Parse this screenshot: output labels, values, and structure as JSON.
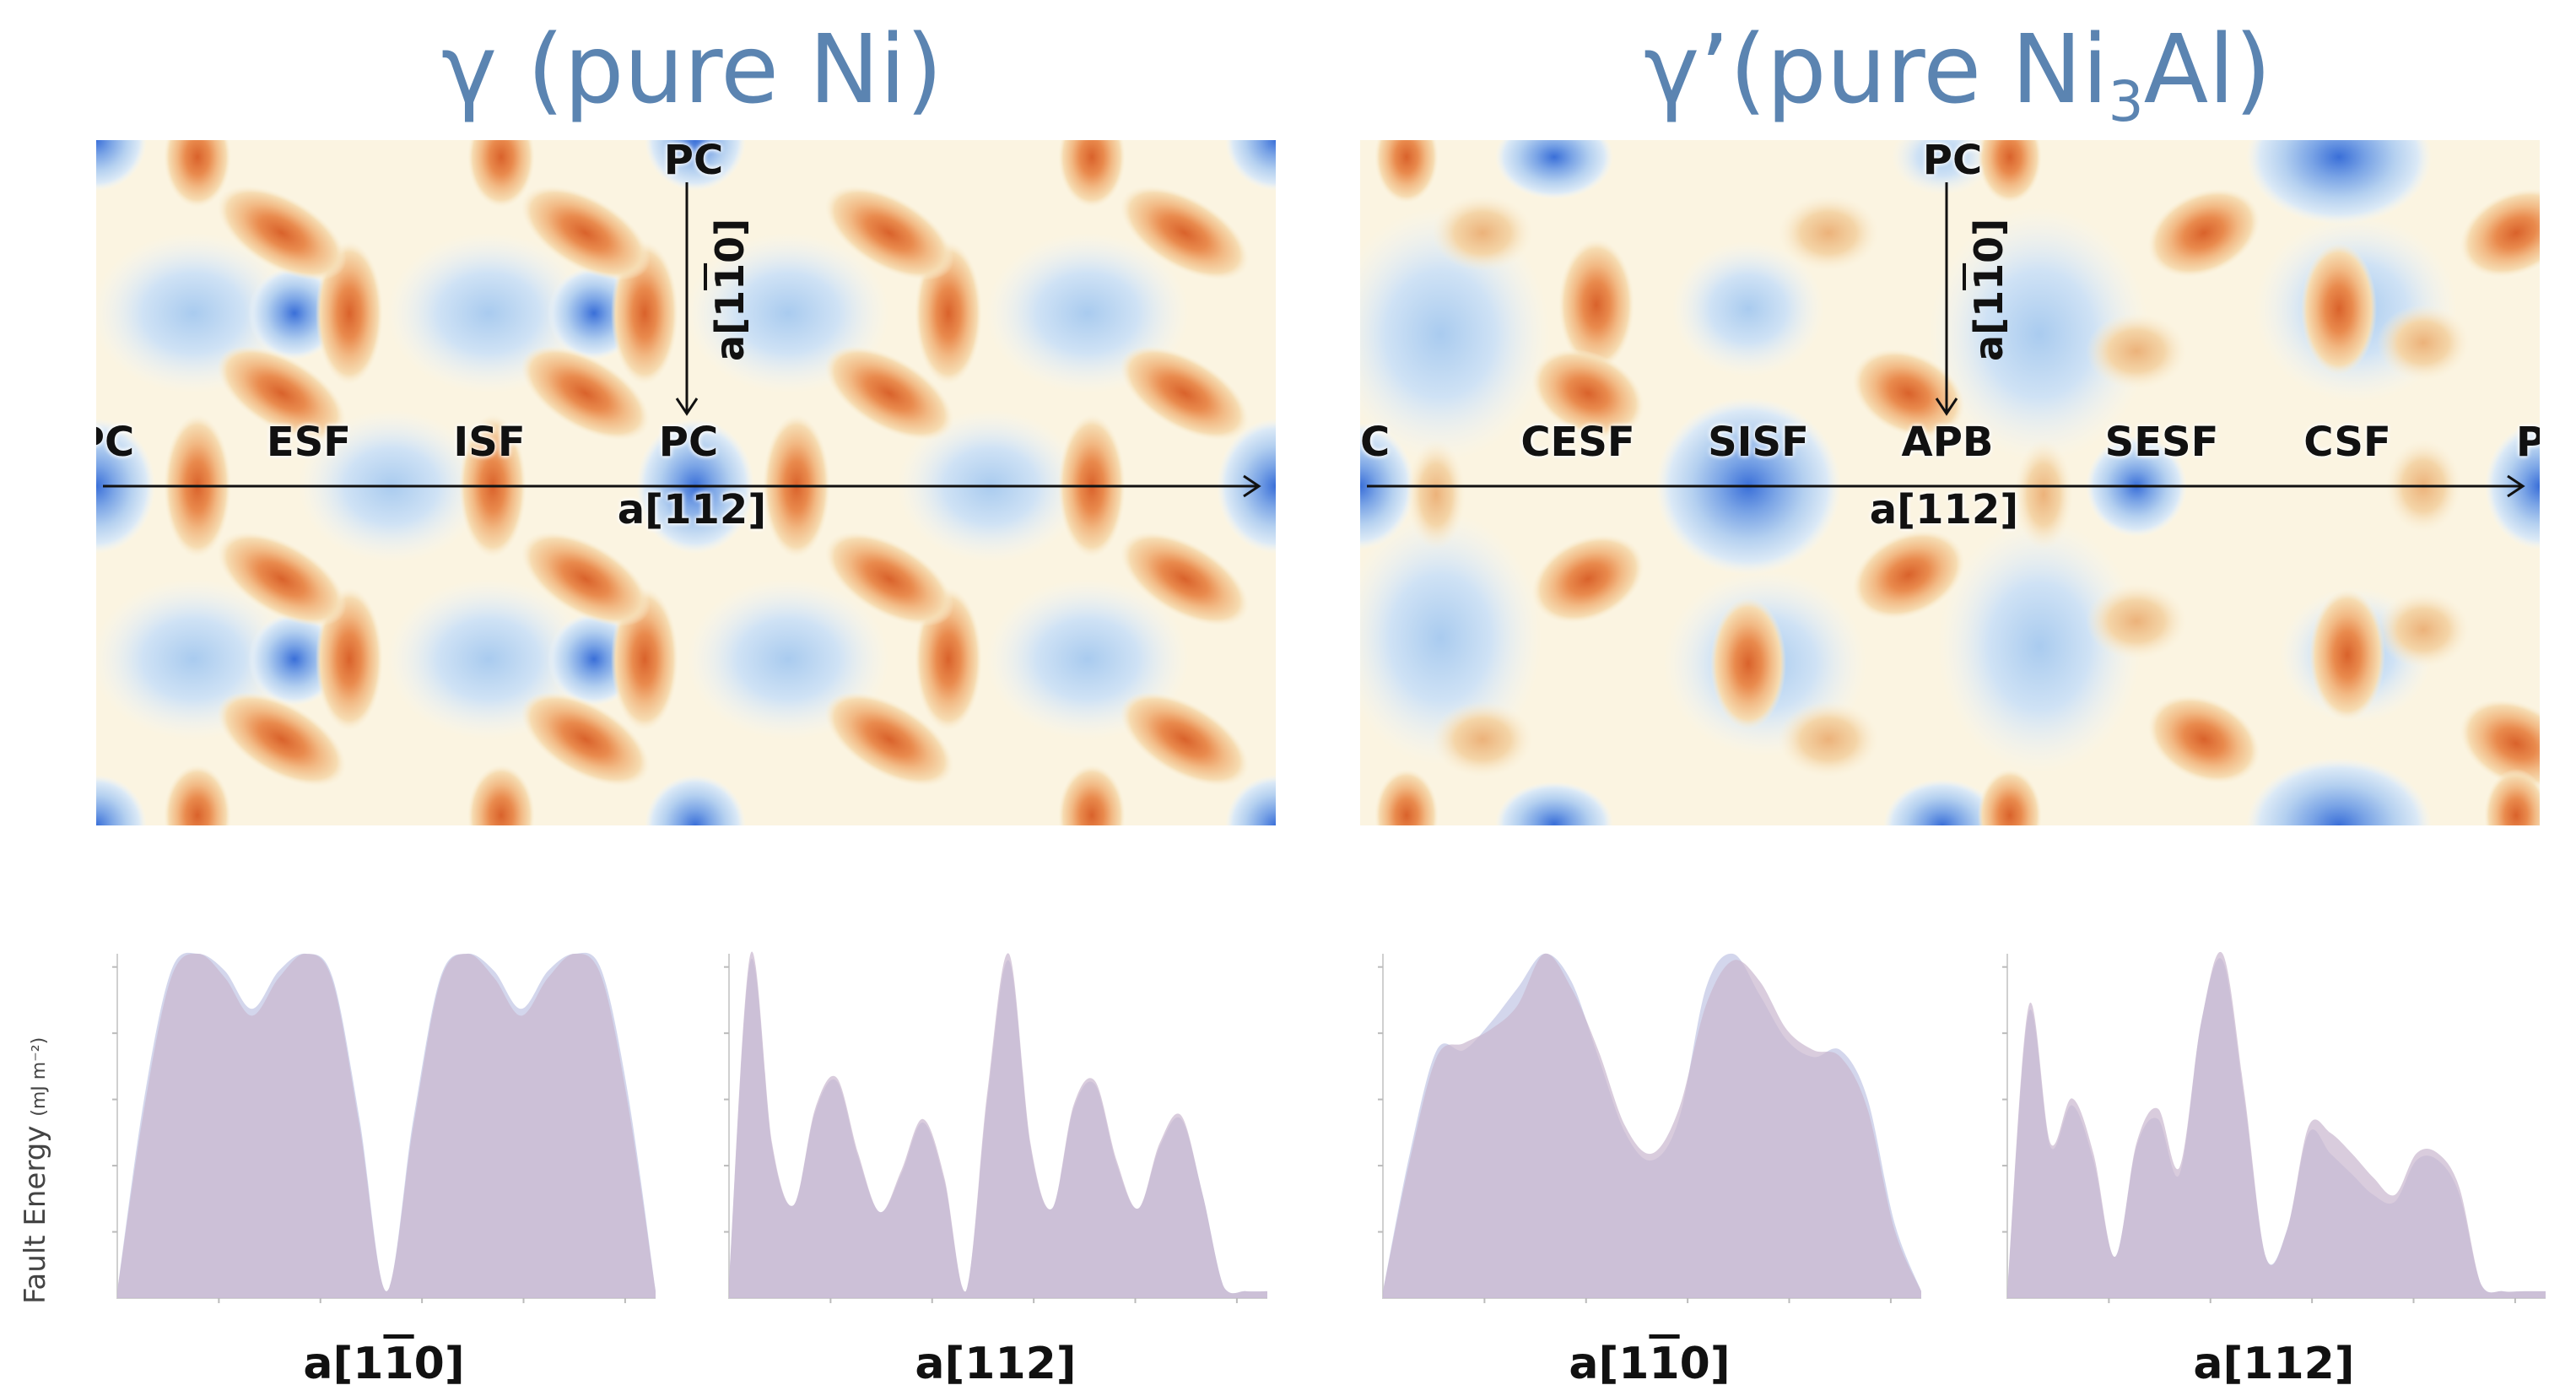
{
  "titles": {
    "left_prefix": "γ (pure Ni)",
    "right_prefix": "γ’(pure Ni",
    "right_sub": "3",
    "right_suffix": "Al)"
  },
  "maps": {
    "left": {
      "h_points": [
        "PC",
        "ESF",
        "ISF",
        "PC"
      ],
      "v_top": "PC",
      "h_axis": "a[112]",
      "v_axis_pre": "a[1",
      "v_axis_bar": "1",
      "v_axis_post": "0]"
    },
    "right": {
      "h_points": [
        "PC",
        "CESF",
        "SISF",
        "APB",
        "SESF",
        "CSF",
        "PC"
      ],
      "v_top": "PC",
      "h_axis": "a[112]",
      "v_axis_pre": "a[1",
      "v_axis_bar": "1",
      "v_axis_post": "0]"
    }
  },
  "profiles": {
    "ylabel": "Fault Energy",
    "yunit": "(mJ m⁻²)",
    "xlabels": [
      {
        "pre": "a[1",
        "bar": "1",
        "post": "0]"
      },
      {
        "pre": "a[112]",
        "bar": "",
        "post": ""
      },
      {
        "pre": "a[1",
        "bar": "1",
        "post": "0]"
      },
      {
        "pre": "a[112]",
        "bar": "",
        "post": ""
      }
    ]
  },
  "colors": {
    "fill_primary": "#c9b7cf",
    "fill_secondary": "#c4c8e6",
    "title": "#5b84b1",
    "map_high": "#d9622b",
    "map_low": "#3a6fd8"
  },
  "chart_data": [
    {
      "type": "area",
      "ylabel": "Fault Energy (mJ m⁻²)",
      "xlabel": "a[11̄0]",
      "x": [
        0,
        0.05,
        0.1,
        0.15,
        0.2,
        0.25,
        0.3,
        0.35,
        0.4,
        0.45,
        0.5,
        0.55,
        0.6,
        0.65,
        0.7,
        0.75,
        0.8,
        0.85,
        0.9,
        0.95,
        1.0
      ],
      "series": [
        {
          "values": [
            0.02,
            0.55,
            0.93,
            1.0,
            0.93,
            0.82,
            0.93,
            1.0,
            0.92,
            0.5,
            0.02,
            0.5,
            0.92,
            1.0,
            0.93,
            0.82,
            0.93,
            1.0,
            0.93,
            0.55,
            0.02
          ]
        },
        {
          "values": [
            0.02,
            0.58,
            0.95,
            1.0,
            0.95,
            0.84,
            0.95,
            1.0,
            0.93,
            0.52,
            0.02,
            0.52,
            0.93,
            1.0,
            0.95,
            0.84,
            0.95,
            1.0,
            0.95,
            0.58,
            0.02
          ]
        }
      ]
    },
    {
      "type": "area",
      "xlabel": "a[112]",
      "x": [
        0,
        0.04,
        0.08,
        0.12,
        0.16,
        0.2,
        0.24,
        0.28,
        0.32,
        0.36,
        0.4,
        0.44,
        0.48,
        0.52,
        0.56,
        0.6,
        0.64,
        0.68,
        0.72,
        0.76,
        0.8,
        0.84,
        0.88,
        0.92,
        0.96,
        1.0
      ],
      "series": [
        {
          "values": [
            0.05,
            1.0,
            0.45,
            0.27,
            0.55,
            0.64,
            0.42,
            0.25,
            0.37,
            0.52,
            0.35,
            0.02,
            0.6,
            1.0,
            0.45,
            0.26,
            0.56,
            0.63,
            0.4,
            0.26,
            0.45,
            0.53,
            0.3,
            0.03,
            0.02,
            0.02
          ]
        },
        {
          "values": [
            0.05,
            0.98,
            0.44,
            0.27,
            0.54,
            0.63,
            0.41,
            0.25,
            0.36,
            0.51,
            0.34,
            0.02,
            0.58,
            0.98,
            0.44,
            0.26,
            0.55,
            0.62,
            0.39,
            0.26,
            0.44,
            0.52,
            0.3,
            0.03,
            0.02,
            0.02
          ]
        }
      ]
    },
    {
      "type": "area",
      "xlabel": "a[11̄0]",
      "x": [
        0,
        0.05,
        0.1,
        0.15,
        0.2,
        0.25,
        0.3,
        0.35,
        0.4,
        0.45,
        0.5,
        0.55,
        0.6,
        0.65,
        0.7,
        0.75,
        0.8,
        0.85,
        0.9,
        0.95,
        1.0
      ],
      "series": [
        {
          "values": [
            0.02,
            0.4,
            0.7,
            0.74,
            0.78,
            0.85,
            1.0,
            0.9,
            0.72,
            0.5,
            0.42,
            0.55,
            0.85,
            0.98,
            0.92,
            0.78,
            0.72,
            0.7,
            0.55,
            0.2,
            0.02
          ]
        },
        {
          "values": [
            0.02,
            0.42,
            0.72,
            0.72,
            0.8,
            0.9,
            1.0,
            0.92,
            0.7,
            0.48,
            0.4,
            0.52,
            0.9,
            1.0,
            0.88,
            0.75,
            0.7,
            0.72,
            0.58,
            0.22,
            0.02
          ]
        }
      ]
    },
    {
      "type": "area",
      "xlabel": "a[112]",
      "x": [
        0,
        0.04,
        0.08,
        0.12,
        0.16,
        0.2,
        0.24,
        0.28,
        0.32,
        0.36,
        0.4,
        0.44,
        0.48,
        0.52,
        0.56,
        0.6,
        0.64,
        0.68,
        0.72,
        0.76,
        0.8,
        0.84,
        0.88,
        0.92,
        0.96,
        1.0
      ],
      "series": [
        {
          "values": [
            0.02,
            0.85,
            0.45,
            0.58,
            0.42,
            0.12,
            0.45,
            0.55,
            0.38,
            0.8,
            1.0,
            0.6,
            0.12,
            0.2,
            0.5,
            0.48,
            0.42,
            0.35,
            0.3,
            0.42,
            0.42,
            0.32,
            0.04,
            0.02,
            0.02,
            0.02
          ]
        },
        {
          "values": [
            0.02,
            0.83,
            0.44,
            0.56,
            0.4,
            0.12,
            0.44,
            0.52,
            0.36,
            0.8,
            0.98,
            0.58,
            0.12,
            0.2,
            0.48,
            0.42,
            0.36,
            0.3,
            0.28,
            0.4,
            0.4,
            0.3,
            0.04,
            0.02,
            0.02,
            0.02
          ]
        }
      ]
    }
  ]
}
